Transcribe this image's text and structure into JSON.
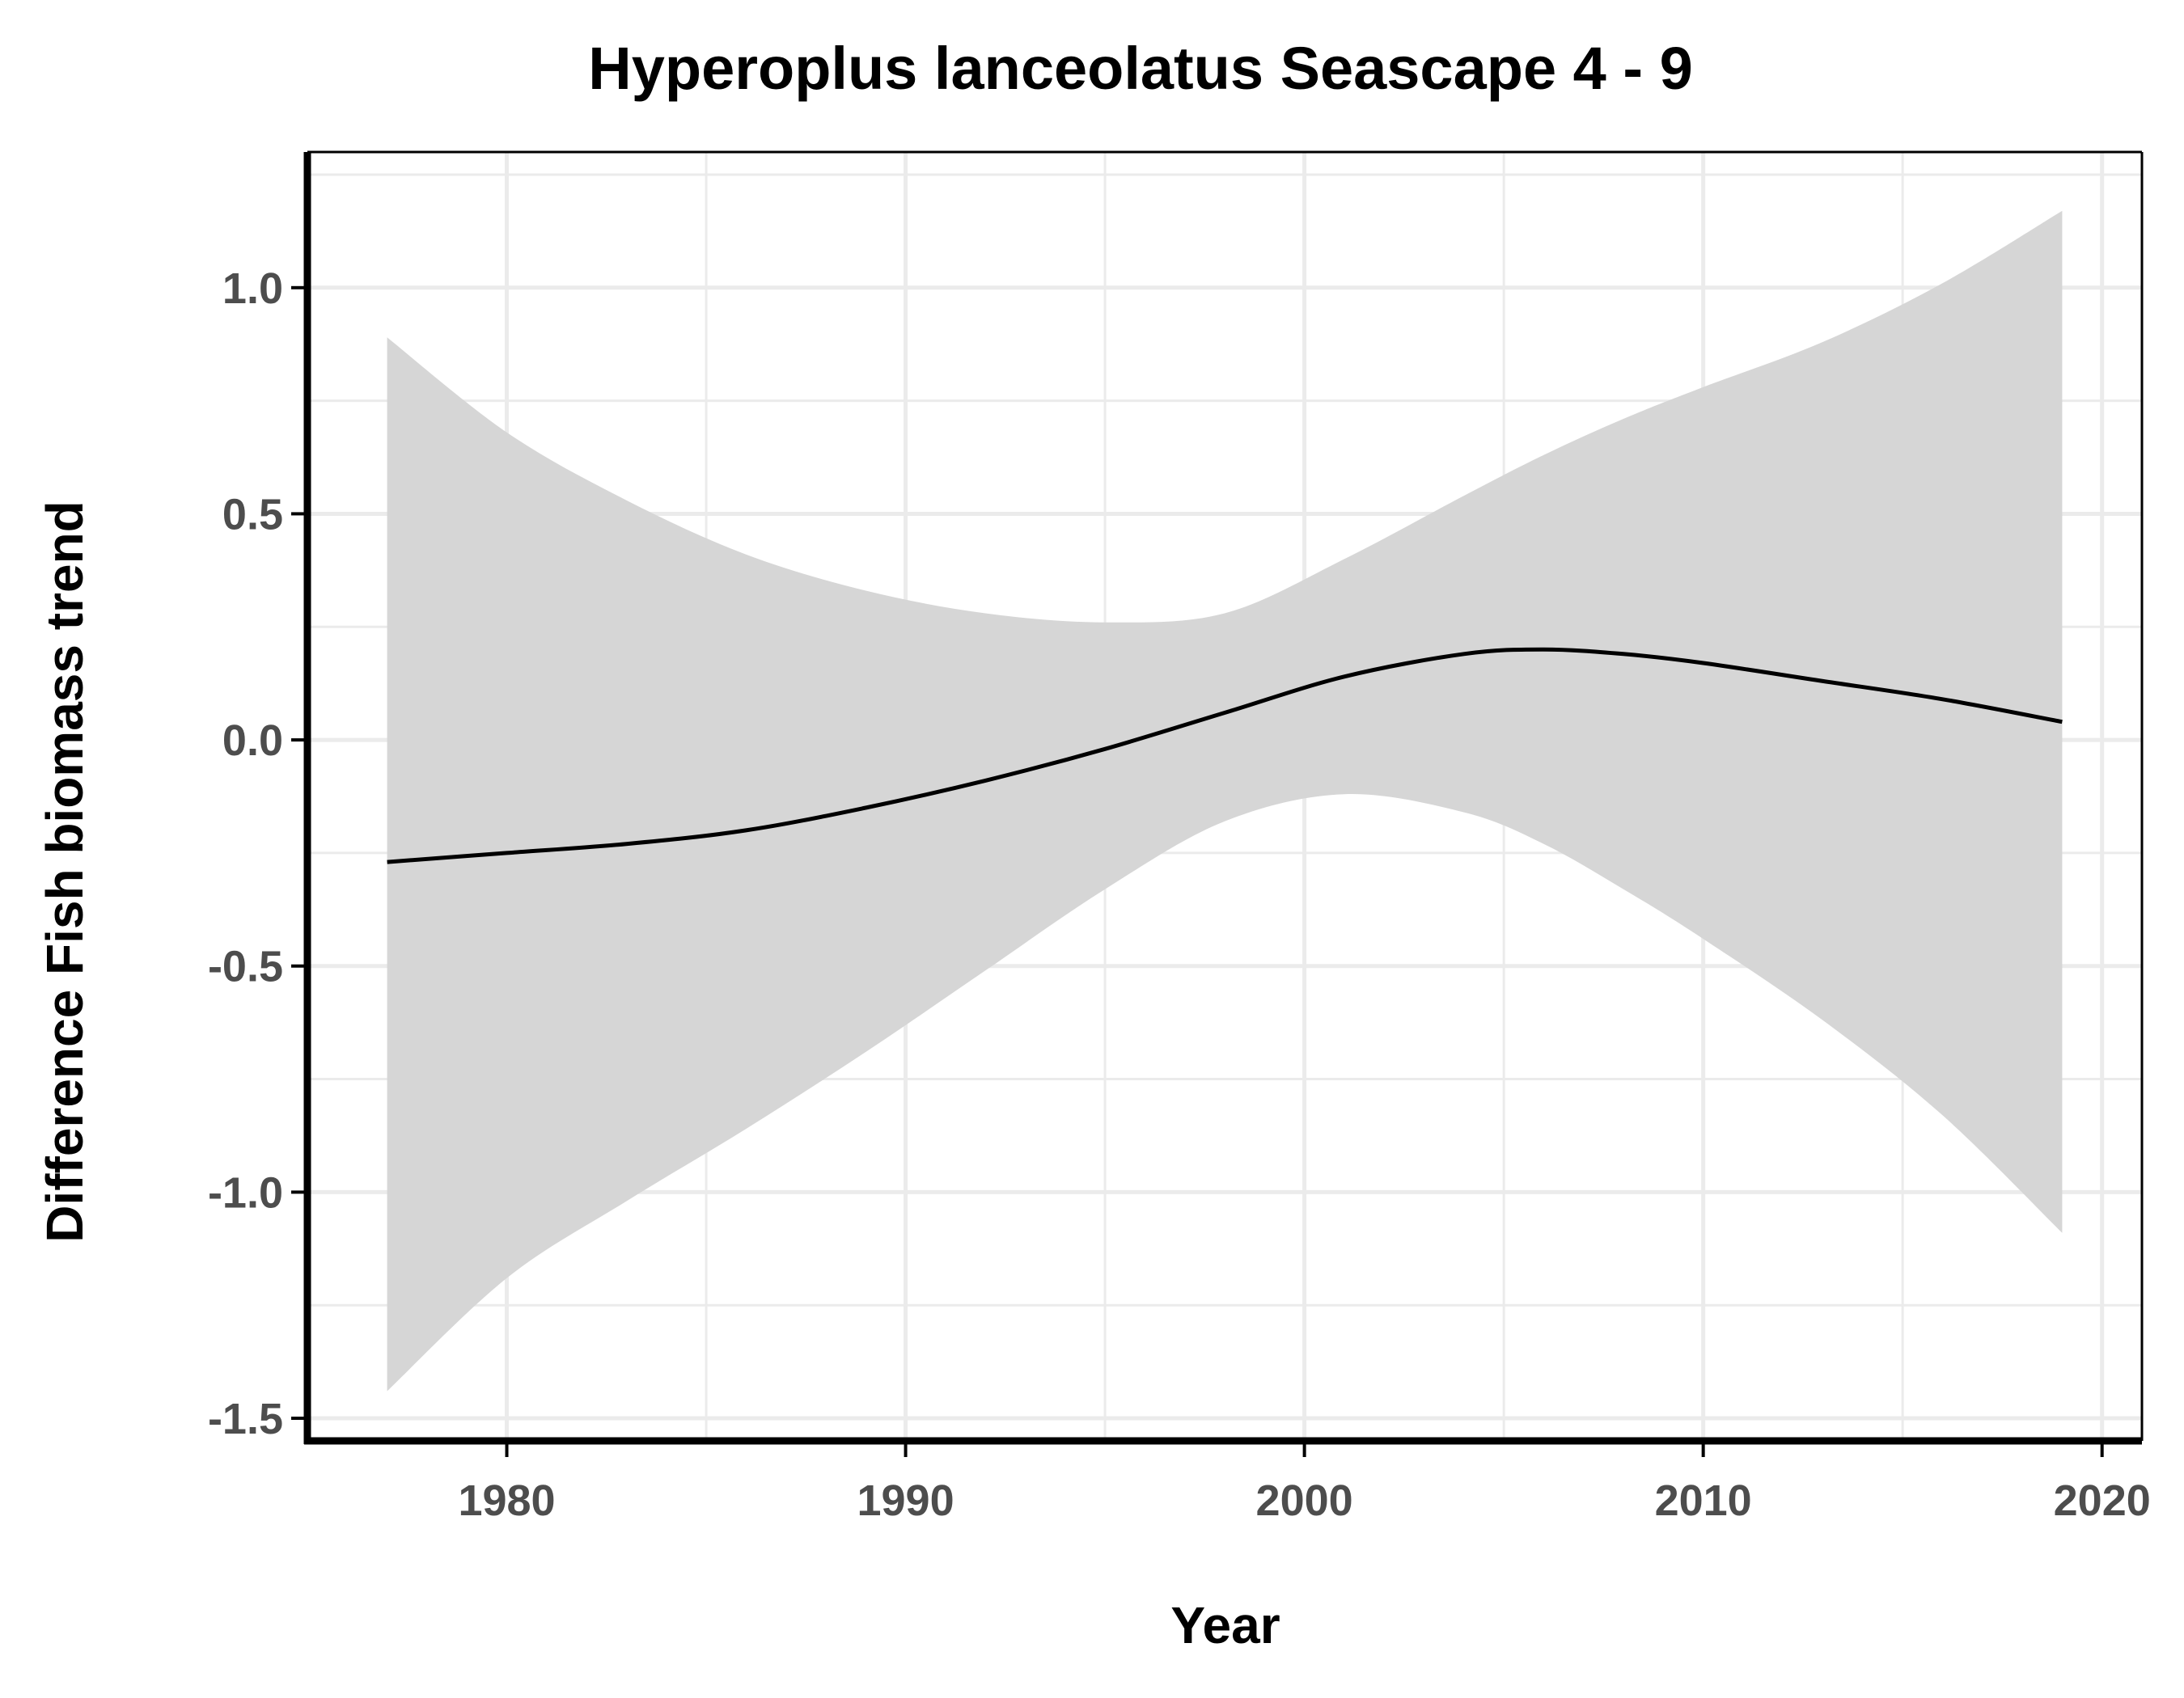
{
  "chart_data": {
    "type": "line",
    "title": "Hyperoplus lanceolatus Seascape 4 - 9",
    "xlabel": "Year",
    "ylabel": "Difference Fish biomass trend",
    "xlim": [
      1975,
      2021
    ],
    "ylim": [
      -1.55,
      1.3
    ],
    "x_ticks": [
      1980,
      1990,
      2000,
      2010,
      2020
    ],
    "x_tick_labels": [
      "1980",
      "1990",
      "2000",
      "2010",
      "2020"
    ],
    "y_ticks": [
      -1.5,
      -1.0,
      -0.5,
      0.0,
      0.5,
      1.0
    ],
    "y_tick_labels": [
      "-1.5",
      "-1.0",
      "-0.5",
      "0.0",
      "0.5",
      "1.0"
    ],
    "grid": true,
    "series": [
      {
        "type": "line",
        "x": [
          1977,
          1980,
          1983,
          1986,
          1989,
          1992,
          1995,
          1998,
          2001,
          2004,
          2006,
          2008,
          2010,
          2013,
          2016,
          2019
        ],
        "y": [
          -0.27,
          -0.25,
          -0.23,
          -0.2,
          -0.15,
          -0.09,
          -0.02,
          0.06,
          0.14,
          0.19,
          0.2,
          0.19,
          0.17,
          0.13,
          0.09,
          0.04
        ]
      },
      {
        "type": "ribbon",
        "x": [
          1977,
          1980,
          1983,
          1986,
          1989,
          1992,
          1995,
          1998,
          2001,
          2004,
          2006,
          2008,
          2010,
          2013,
          2016,
          2019
        ],
        "lower": [
          -1.44,
          -1.19,
          -1.02,
          -0.86,
          -0.69,
          -0.51,
          -0.33,
          -0.18,
          -0.12,
          -0.16,
          -0.23,
          -0.33,
          -0.44,
          -0.62,
          -0.83,
          -1.09
        ],
        "upper": [
          0.89,
          0.68,
          0.53,
          0.41,
          0.33,
          0.28,
          0.26,
          0.28,
          0.4,
          0.54,
          0.63,
          0.71,
          0.78,
          0.88,
          1.01,
          1.17
        ]
      }
    ],
    "colors": {
      "line": "#000000",
      "ribbon": "#d6d6d6",
      "grid": "#ebebeb",
      "axis": "#000000",
      "tick_label": "#4d4d4d"
    }
  }
}
